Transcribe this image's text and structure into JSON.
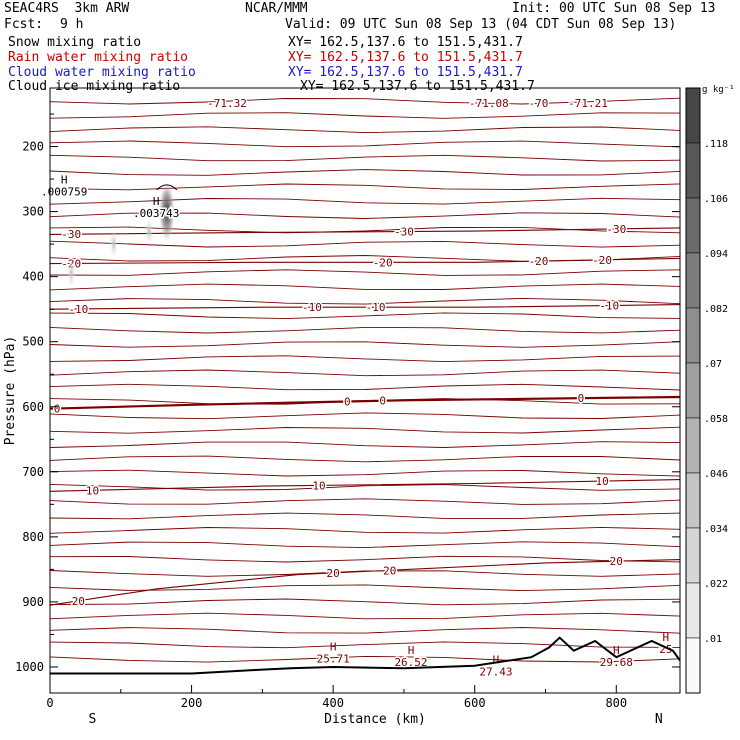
{
  "header": {
    "project": "SEAC4RS  3km ARW",
    "center": "NCAR/MMM",
    "init": "Init: 00 UTC Sun 08 Sep 13",
    "fcst_label": "Fcst:",
    "fcst_value": "9 h",
    "valid": "Valid: 09 UTC Sun 08 Sep 13 (04 CDT Sun 08 Sep 13)"
  },
  "fields": [
    {
      "name": "Snow mixing ratio",
      "xy": "XY= 162.5,137.6 to 151.5,431.7",
      "color": "#000000"
    },
    {
      "name": "Rain water mixing ratio",
      "xy": "XY= 162.5,137.6 to 151.5,431.7",
      "color": "#cc0000"
    },
    {
      "name": "Cloud water mixing ratio",
      "xy": "XY= 162.5,137.6 to 151.5,431.7",
      "color": "#1a1acc"
    },
    {
      "name": "Cloud ice mixing ratio",
      "xy": "XY= 162.5,137.6 to 151.5,431.7",
      "color": "#000000"
    }
  ],
  "chart_data": {
    "type": "cross-section contour",
    "xlabel": "Distance (km)",
    "ylabel": "Pressure (hPa)",
    "x_ticks": [
      0,
      200,
      400,
      600,
      800
    ],
    "xlim": [
      0,
      890
    ],
    "y_ticks": [
      200,
      300,
      400,
      500,
      600,
      700,
      800,
      900,
      1000
    ],
    "ylim": [
      1040,
      110
    ],
    "start_label": "S",
    "end_label": "N",
    "colorbar": {
      "unit": "g kg⁻¹",
      "ticks": [
        ".118",
        ".106",
        ".094",
        ".082",
        ".07",
        ".058",
        ".046",
        ".034",
        ".022",
        ".01"
      ]
    },
    "temperature_contours": [
      {
        "level": "-30",
        "points": [
          [
            0,
            335
          ],
          [
            300,
            332
          ],
          [
            600,
            330
          ],
          [
            890,
            325
          ]
        ],
        "labels": [
          [
            30,
            "-30"
          ],
          [
            500,
            "-30"
          ],
          [
            800,
            "-30"
          ]
        ]
      },
      {
        "level": "-20",
        "points": [
          [
            0,
            380
          ],
          [
            300,
            378
          ],
          [
            600,
            378
          ],
          [
            890,
            372
          ]
        ],
        "labels": [
          [
            30,
            "-20"
          ],
          [
            470,
            "-20"
          ],
          [
            690,
            "-20"
          ],
          [
            780,
            "-20"
          ]
        ]
      },
      {
        "level": "-10",
        "points": [
          [
            0,
            450
          ],
          [
            300,
            447
          ],
          [
            600,
            447
          ],
          [
            890,
            443
          ]
        ],
        "labels": [
          [
            40,
            "-10"
          ],
          [
            370,
            "-10"
          ],
          [
            460,
            "-10"
          ],
          [
            790,
            "-10"
          ]
        ]
      },
      {
        "level": "0",
        "points": [
          [
            0,
            603
          ],
          [
            200,
            597
          ],
          [
            500,
            590
          ],
          [
            890,
            585
          ]
        ],
        "labels": [
          [
            10,
            "0"
          ],
          [
            420,
            "0"
          ],
          [
            470,
            "0"
          ],
          [
            750,
            "0"
          ]
        ]
      },
      {
        "level": "10",
        "points": [
          [
            0,
            730
          ],
          [
            300,
            722
          ],
          [
            600,
            718
          ],
          [
            890,
            712
          ]
        ],
        "labels": [
          [
            60,
            "10"
          ],
          [
            380,
            "10"
          ],
          [
            780,
            "10"
          ]
        ]
      },
      {
        "level": "20",
        "points": [
          [
            0,
            905
          ],
          [
            150,
            880
          ],
          [
            350,
            858
          ],
          [
            700,
            840
          ],
          [
            890,
            835
          ]
        ],
        "labels": [
          [
            40,
            "20"
          ],
          [
            400,
            "20"
          ],
          [
            480,
            "20"
          ],
          [
            800,
            "20"
          ]
        ]
      }
    ],
    "upper_labels": [
      [
        "-71.32",
        250
      ],
      [
        "-71.08",
        620
      ],
      [
        "-70",
        690
      ],
      [
        "-71.21",
        760
      ]
    ],
    "maxima": [
      {
        "label": "H",
        "value": ".000759",
        "x": 20,
        "y": 257
      },
      {
        "label": "H",
        "value": ".003743",
        "x": 150,
        "y": 290
      },
      {
        "label": "H",
        "value": "25.71",
        "x": 400,
        "y": 975
      },
      {
        "label": "H",
        "value": "26.52",
        "x": 510,
        "y": 980
      },
      {
        "label": "H",
        "value": "27.43",
        "x": 630,
        "y": 995
      },
      {
        "label": "H",
        "value": "29.68",
        "x": 800,
        "y": 980
      },
      {
        "label": "H",
        "value": "25",
        "x": 870,
        "y": 960
      }
    ],
    "terrain": [
      [
        0,
        1010
      ],
      [
        200,
        1010
      ],
      [
        300,
        1004
      ],
      [
        340,
        1002
      ],
      [
        400,
        1000
      ],
      [
        500,
        1002
      ],
      [
        600,
        998
      ],
      [
        680,
        985
      ],
      [
        705,
        970
      ],
      [
        720,
        955
      ],
      [
        740,
        975
      ],
      [
        770,
        960
      ],
      [
        800,
        985
      ],
      [
        850,
        960
      ],
      [
        880,
        975
      ],
      [
        890,
        990
      ]
    ]
  }
}
